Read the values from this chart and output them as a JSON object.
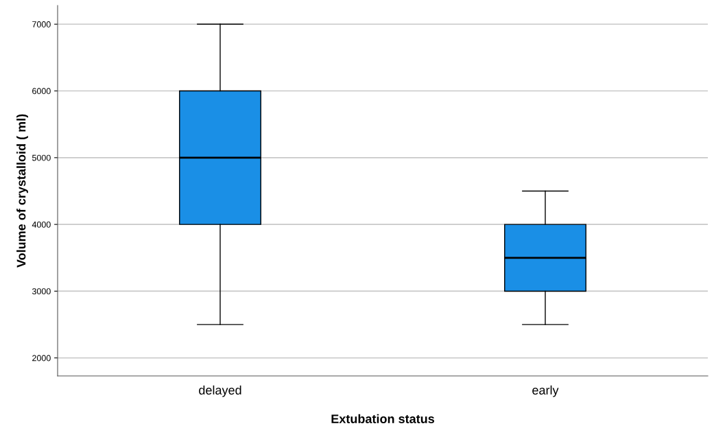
{
  "chart_data": {
    "type": "box",
    "xlabel": "Extubation status",
    "ylabel": "Volume of crystalloid ( ml)",
    "categories": [
      "delayed",
      "early"
    ],
    "boxes": [
      {
        "low": 2500,
        "q1": 4000,
        "median": 5000,
        "q3": 6000,
        "high": 7000
      },
      {
        "low": 2500,
        "q1": 3000,
        "median": 3500,
        "q3": 4000,
        "high": 4500
      }
    ],
    "color": "#1a8fe6",
    "ylim": [
      1730,
      7280
    ],
    "yticks": [
      2000,
      3000,
      4000,
      5000,
      6000,
      7000
    ],
    "grid": "y"
  }
}
